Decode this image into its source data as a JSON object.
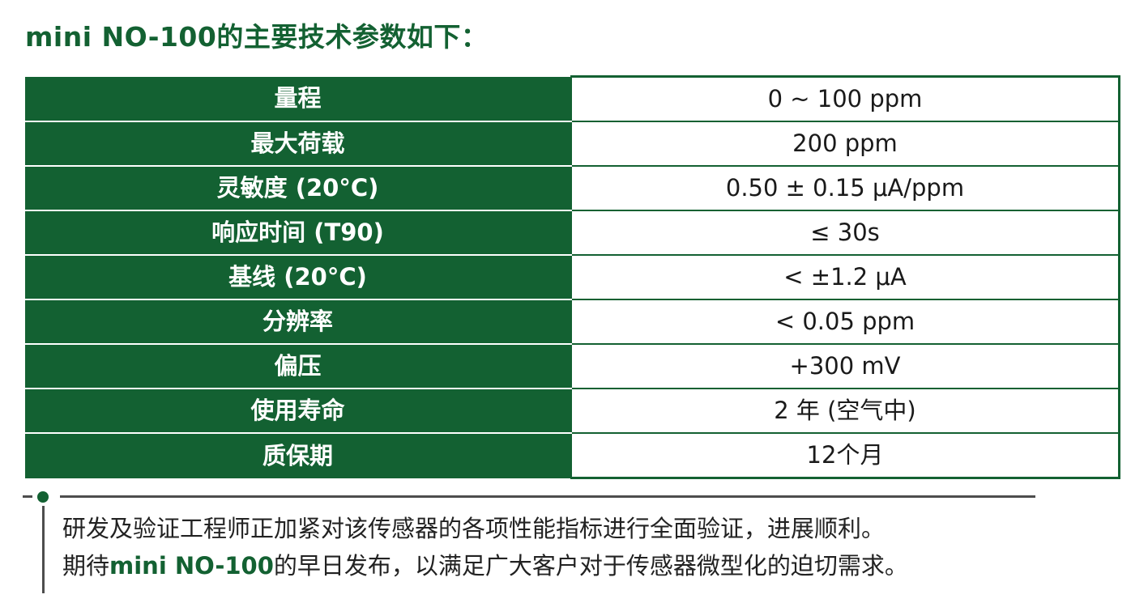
{
  "title": "mini NO-100的主要技术参数如下：",
  "specs": [
    {
      "param": "量程",
      "value": "0 ~ 100 ppm"
    },
    {
      "param": "最大荷载",
      "value": "200 ppm"
    },
    {
      "param": "灵敏度 (20°C)",
      "value": "0.50 ± 0.15 μA/ppm"
    },
    {
      "param": "响应时间 (T90)",
      "value": "≤ 30s"
    },
    {
      "param": "基线 (20°C)",
      "value": "< ±1.2 μA"
    },
    {
      "param": "分辨率",
      "value": "< 0.05 ppm"
    },
    {
      "param": "偏压",
      "value": "+300 mV"
    },
    {
      "param": "使用寿命",
      "value": "2 年 (空气中)"
    },
    {
      "param": "质保期",
      "value": "12个月"
    }
  ],
  "notes": {
    "line1": "研发及验证工程师正加紧对该传感器的各项性能指标进行全面验证，进展顺利。",
    "line2_prefix": "期待",
    "line2_brand": "mini NO-100",
    "line2_suffix": "的早日发布，以满足广大客户对于传感器微型化的迫切需求。"
  },
  "colors": {
    "brand_green": "#136132",
    "text_dark": "#222222"
  }
}
